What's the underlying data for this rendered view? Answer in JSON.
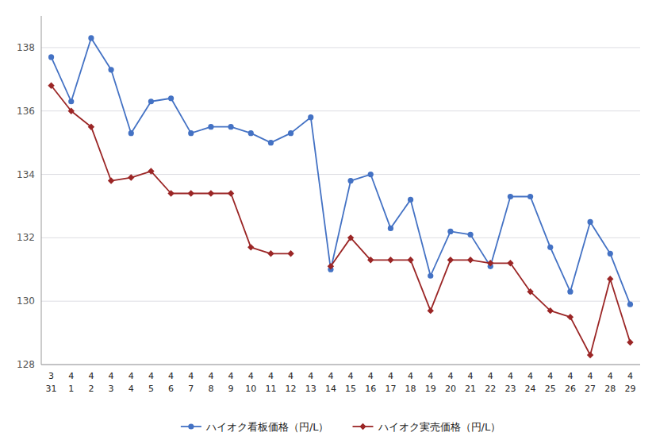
{
  "chart_data": {
    "type": "line",
    "categories": [
      [
        "3",
        "31"
      ],
      [
        "4",
        "1"
      ],
      [
        "4",
        "2"
      ],
      [
        "4",
        "3"
      ],
      [
        "4",
        "4"
      ],
      [
        "4",
        "5"
      ],
      [
        "4",
        "6"
      ],
      [
        "4",
        "7"
      ],
      [
        "4",
        "8"
      ],
      [
        "4",
        "9"
      ],
      [
        "4",
        "10"
      ],
      [
        "4",
        "11"
      ],
      [
        "4",
        "12"
      ],
      [
        "4",
        "13"
      ],
      [
        "4",
        "14"
      ],
      [
        "4",
        "15"
      ],
      [
        "4",
        "16"
      ],
      [
        "4",
        "17"
      ],
      [
        "4",
        "18"
      ],
      [
        "4",
        "19"
      ],
      [
        "4",
        "20"
      ],
      [
        "4",
        "21"
      ],
      [
        "4",
        "22"
      ],
      [
        "4",
        "23"
      ],
      [
        "4",
        "24"
      ],
      [
        "4",
        "25"
      ],
      [
        "4",
        "26"
      ],
      [
        "4",
        "27"
      ],
      [
        "4",
        "28"
      ],
      [
        "4",
        "29"
      ]
    ],
    "series": [
      {
        "name": "ハイオク看板価格（円/L）",
        "color": "#4472c4",
        "marker": "circle",
        "values": [
          137.7,
          136.3,
          138.3,
          137.3,
          135.3,
          136.3,
          136.4,
          135.3,
          135.5,
          135.5,
          135.3,
          135.0,
          135.3,
          135.8,
          131.0,
          133.8,
          134.0,
          132.3,
          133.2,
          130.8,
          132.2,
          132.1,
          131.1,
          133.3,
          133.3,
          131.7,
          130.3,
          132.5,
          131.5,
          129.9
        ]
      },
      {
        "name": "ハイオク実売価格（円/L）",
        "color": "#9b2626",
        "marker": "diamond",
        "values": [
          136.8,
          136.0,
          135.5,
          133.8,
          133.9,
          134.1,
          133.4,
          133.4,
          133.4,
          133.4,
          131.7,
          131.5,
          131.5,
          null,
          131.1,
          132.0,
          131.3,
          131.3,
          131.3,
          129.7,
          131.3,
          131.3,
          131.2,
          131.2,
          130.3,
          129.7,
          129.5,
          128.3,
          130.7,
          128.7
        ]
      }
    ],
    "ylim": [
      128,
      139
    ],
    "yticks": [
      128,
      130,
      132,
      134,
      136,
      138
    ],
    "grid": true,
    "legend": "bottom"
  }
}
